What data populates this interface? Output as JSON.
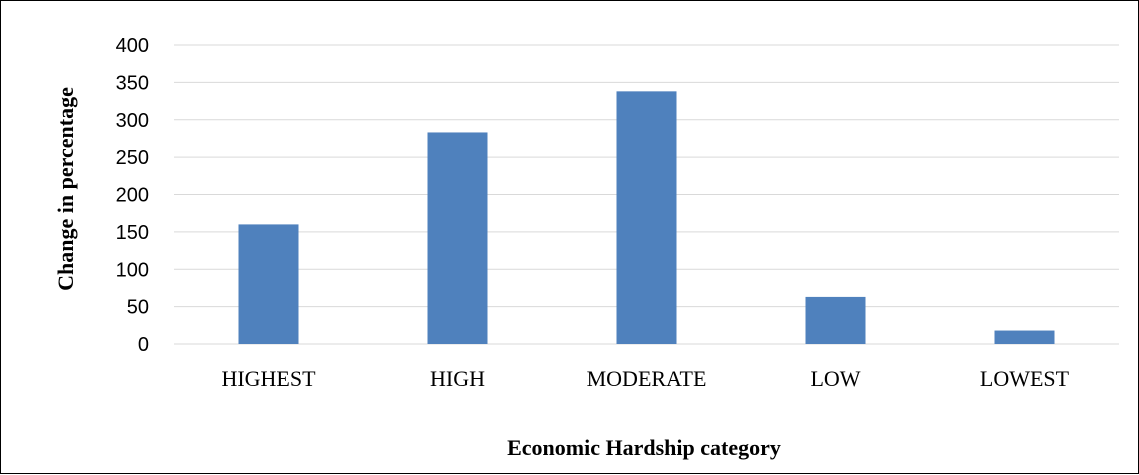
{
  "chart_data": {
    "type": "bar",
    "categories": [
      "HIGHEST",
      "HIGH",
      "MODERATE",
      "LOW",
      "LOWEST"
    ],
    "values": [
      160,
      283,
      338,
      63,
      18
    ],
    "title": "",
    "xlabel": "Economic Hardship category",
    "ylabel": "Change in percentage",
    "ylim": [
      0,
      400
    ],
    "yticks": [
      0,
      50,
      100,
      150,
      200,
      250,
      300,
      350,
      400
    ],
    "grid": true,
    "bar_color": "#4f81bd",
    "grid_color": "#d9d9d9"
  }
}
